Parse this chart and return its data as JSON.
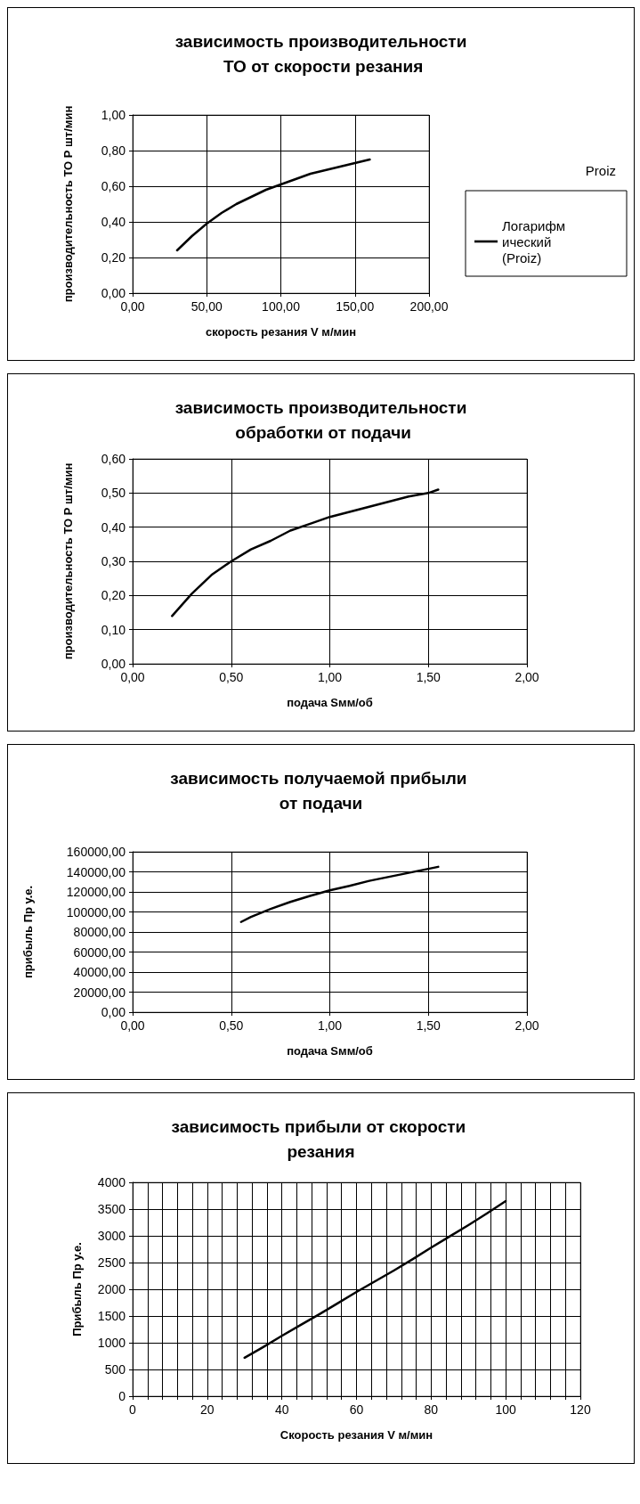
{
  "chart_data": [
    {
      "type": "line",
      "title": "зависимость производительности ТО от скорости резания",
      "xlabel": "скорость резания V м/мин",
      "ylabel": "производительность ТО Р шт/мин",
      "legend_title": "Proiz",
      "legend": "right",
      "grid": true,
      "marker": "none",
      "line_style": "solid",
      "series": [
        {
          "name": "Логарифмический (Proiz)",
          "color": "#000000",
          "x": [
            30,
            40,
            50,
            60,
            70,
            80,
            90,
            100,
            110,
            120,
            130,
            140,
            150,
            160
          ],
          "values": [
            0.24,
            0.32,
            0.39,
            0.45,
            0.5,
            0.54,
            0.58,
            0.61,
            0.64,
            0.67,
            0.69,
            0.71,
            0.73,
            0.75
          ]
        }
      ],
      "xlim": [
        0,
        200
      ],
      "xticks": [
        {
          "value": 0,
          "label": "0,00"
        },
        {
          "value": 50,
          "label": "50,00"
        },
        {
          "value": 100,
          "label": "100,00"
        },
        {
          "value": 150,
          "label": "150,00"
        },
        {
          "value": 200,
          "label": "200,00"
        }
      ],
      "ylim": [
        0,
        1
      ],
      "yticks": [
        {
          "value": 0,
          "label": "0,00"
        },
        {
          "value": 0.2,
          "label": "0,20"
        },
        {
          "value": 0.4,
          "label": "0,40"
        },
        {
          "value": 0.6,
          "label": "0,60"
        },
        {
          "value": 0.8,
          "label": "0,80"
        },
        {
          "value": 1,
          "label": "1,00"
        }
      ]
    },
    {
      "type": "line",
      "title": "зависимость производительности обработки от подачи",
      "xlabel": "подача Sмм/об",
      "ylabel": "производительность ТО Р шт/мин",
      "legend": false,
      "grid": true,
      "marker": "none",
      "line_style": "solid",
      "series": [
        {
          "color": "#000000",
          "x": [
            0.2,
            0.3,
            0.4,
            0.5,
            0.6,
            0.7,
            0.8,
            0.9,
            1.0,
            1.1,
            1.2,
            1.3,
            1.4,
            1.5,
            1.55
          ],
          "values": [
            0.14,
            0.205,
            0.26,
            0.3,
            0.335,
            0.36,
            0.39,
            0.41,
            0.43,
            0.445,
            0.46,
            0.475,
            0.49,
            0.5,
            0.51
          ]
        }
      ],
      "xlim": [
        0,
        2
      ],
      "xticks": [
        {
          "value": 0,
          "label": "0,00"
        },
        {
          "value": 0.5,
          "label": "0,50"
        },
        {
          "value": 1,
          "label": "1,00"
        },
        {
          "value": 1.5,
          "label": "1,50"
        },
        {
          "value": 2,
          "label": "2,00"
        }
      ],
      "ylim": [
        0,
        0.6
      ],
      "yticks": [
        {
          "value": 0,
          "label": "0,00"
        },
        {
          "value": 0.1,
          "label": "0,10"
        },
        {
          "value": 0.2,
          "label": "0,20"
        },
        {
          "value": 0.3,
          "label": "0,30"
        },
        {
          "value": 0.4,
          "label": "0,40"
        },
        {
          "value": 0.5,
          "label": "0,50"
        },
        {
          "value": 0.6,
          "label": "0,60"
        }
      ]
    },
    {
      "type": "line",
      "title": "зависимость получаемой прибыли от подачи",
      "xlabel": "подача Sмм/об",
      "ylabel": "прибыль Пр у.е.",
      "legend": false,
      "grid": true,
      "marker": "none",
      "line_style": "solid",
      "series": [
        {
          "color": "#000000",
          "x": [
            0.55,
            0.6,
            0.7,
            0.8,
            0.9,
            1.0,
            1.1,
            1.2,
            1.3,
            1.4,
            1.5,
            1.55
          ],
          "values": [
            90000,
            95000,
            103000,
            110000,
            116000,
            121500,
            126000,
            131000,
            135000,
            139000,
            143000,
            145000
          ]
        }
      ],
      "xlim": [
        0,
        2
      ],
      "xticks": [
        {
          "value": 0,
          "label": "0,00"
        },
        {
          "value": 0.5,
          "label": "0,50"
        },
        {
          "value": 1,
          "label": "1,00"
        },
        {
          "value": 1.5,
          "label": "1,50"
        },
        {
          "value": 2,
          "label": "2,00"
        }
      ],
      "ylim": [
        0,
        160000
      ],
      "yticks": [
        {
          "value": 0,
          "label": "0,00"
        },
        {
          "value": 20000,
          "label": "20000,00"
        },
        {
          "value": 40000,
          "label": "40000,00"
        },
        {
          "value": 60000,
          "label": "60000,00"
        },
        {
          "value": 80000,
          "label": "80000,00"
        },
        {
          "value": 100000,
          "label": "100000,00"
        },
        {
          "value": 120000,
          "label": "120000,00"
        },
        {
          "value": 140000,
          "label": "140000,00"
        },
        {
          "value": 160000,
          "label": "160000,00"
        }
      ]
    },
    {
      "type": "line",
      "title": "зависимость прибыли от скорости резания",
      "xlabel": "Скорость резания V м/мин",
      "ylabel": "Прибыль Пр у.е.",
      "legend": false,
      "grid": true,
      "marker": "none",
      "line_style": "solid",
      "series": [
        {
          "color": "#000000",
          "x": [
            30,
            35,
            40,
            45,
            50,
            55,
            60,
            65,
            70,
            75,
            80,
            85,
            90,
            95,
            100
          ],
          "values": [
            720,
            920,
            1130,
            1330,
            1530,
            1740,
            1950,
            2150,
            2350,
            2560,
            2780,
            2990,
            3200,
            3420,
            3650
          ]
        }
      ],
      "xlim": [
        0,
        120
      ],
      "xticks": [
        0,
        {
          "value": 4,
          "label": null
        },
        {
          "value": 8,
          "label": null
        },
        {
          "value": 12,
          "label": null
        },
        {
          "value": 16,
          "label": null
        },
        20,
        {
          "value": 24,
          "label": null
        },
        {
          "value": 28,
          "label": null
        },
        {
          "value": 32,
          "label": null
        },
        {
          "value": 36,
          "label": null
        },
        40,
        {
          "value": 44,
          "label": null
        },
        {
          "value": 48,
          "label": null
        },
        {
          "value": 52,
          "label": null
        },
        {
          "value": 56,
          "label": null
        },
        60,
        {
          "value": 64,
          "label": null
        },
        {
          "value": 68,
          "label": null
        },
        {
          "value": 72,
          "label": null
        },
        {
          "value": 76,
          "label": null
        },
        80,
        {
          "value": 84,
          "label": null
        },
        {
          "value": 88,
          "label": null
        },
        {
          "value": 92,
          "label": null
        },
        {
          "value": 96,
          "label": null
        },
        100,
        {
          "value": 104,
          "label": null
        },
        {
          "value": 108,
          "label": null
        },
        {
          "value": 112,
          "label": null
        },
        {
          "value": 116,
          "label": null
        },
        120
      ],
      "ylim": [
        0,
        4000
      ],
      "yticks": [
        0,
        500,
        1000,
        1500,
        2000,
        2500,
        3000,
        3500,
        4000
      ]
    }
  ]
}
